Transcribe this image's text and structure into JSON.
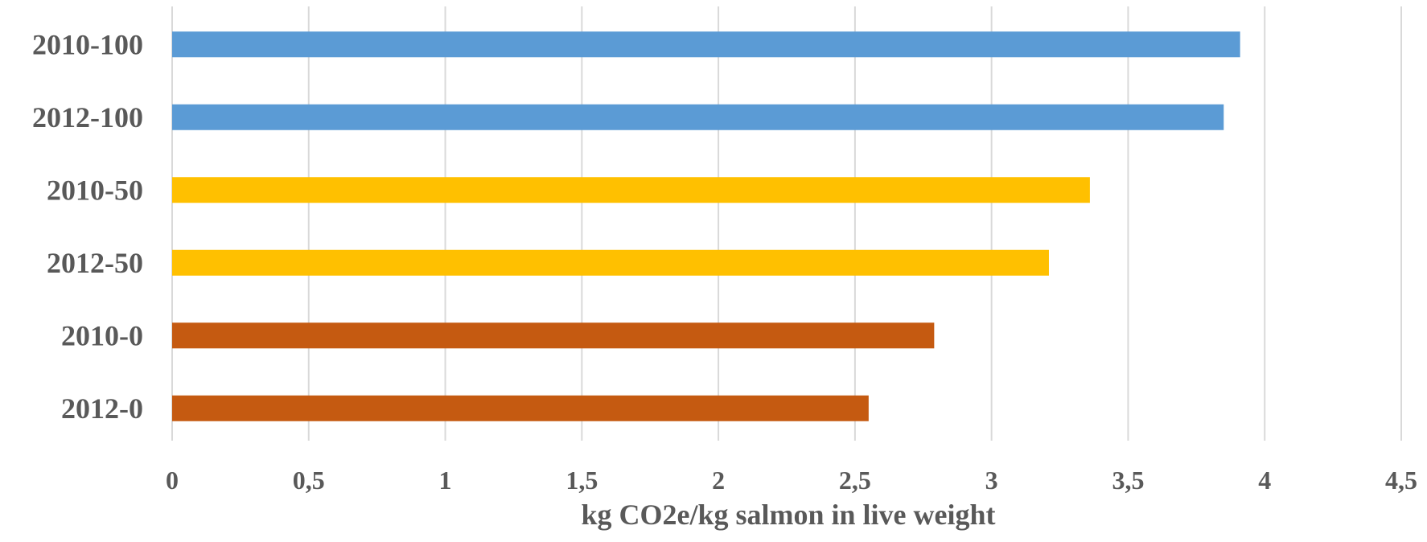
{
  "chart_data": {
    "type": "bar",
    "orientation": "horizontal",
    "categories": [
      "2010-100",
      "2012-100",
      "2010-50",
      "2012-50",
      "2010-0",
      "2012-0"
    ],
    "values": [
      3.91,
      3.85,
      3.36,
      3.21,
      2.79,
      2.55
    ],
    "bar_colors": [
      "#5b9bd5",
      "#5b9bd5",
      "#ffc000",
      "#ffc000",
      "#c55a11",
      "#c55a11"
    ],
    "title": "",
    "xlabel": "kg CO2e/kg salmon in live weight",
    "ylabel": "",
    "xlim": [
      0,
      4.5
    ],
    "xticks": [
      0,
      0.5,
      1,
      1.5,
      2,
      2.5,
      3,
      3.5,
      4,
      4.5
    ],
    "xtick_labels": [
      "0",
      "0,5",
      "1",
      "1,5",
      "2",
      "2,5",
      "3",
      "3,5",
      "4",
      "4,5"
    ],
    "grid": true,
    "legend": "none"
  }
}
